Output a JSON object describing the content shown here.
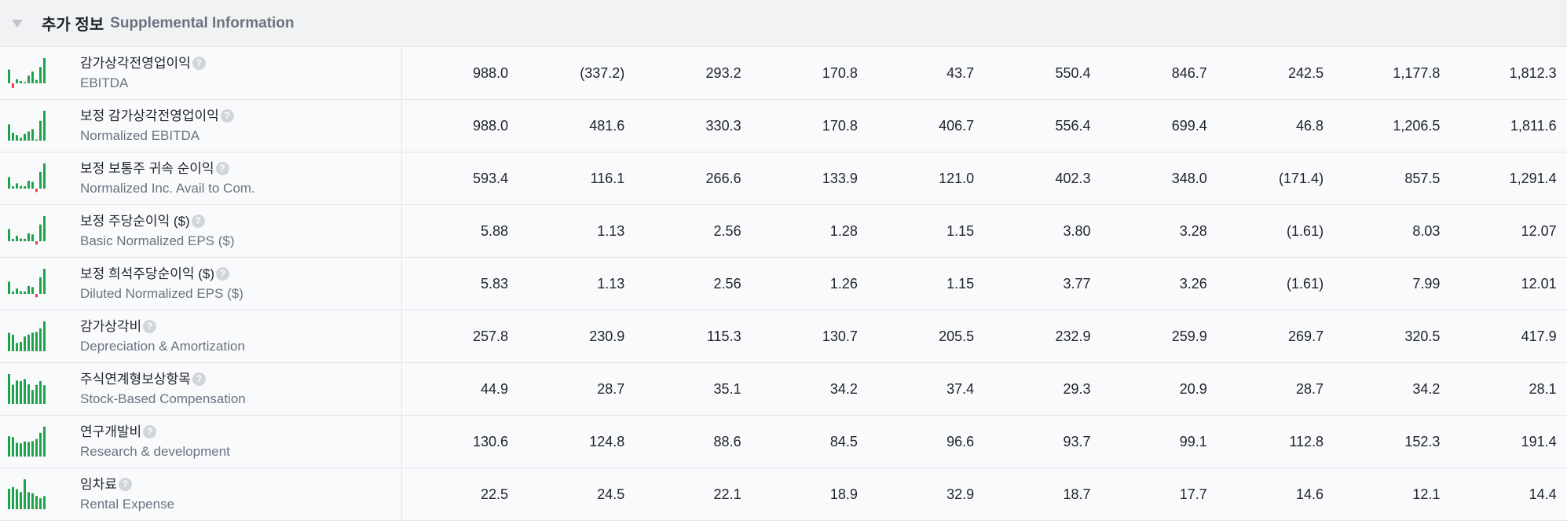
{
  "section": {
    "title_ko": "추가 정보",
    "title_en": "Supplemental Information",
    "collapse_icon": "triangle-down-icon"
  },
  "colors": {
    "positive": "#1fa34a",
    "negative": "#ef4444"
  },
  "rows": [
    {
      "ko": "감가상각전영업이익",
      "en": "EBITDA",
      "values": [
        "988.0",
        "(337.2)",
        "293.2",
        "170.8",
        "43.7",
        "550.4",
        "846.7",
        "242.5",
        "1,177.8",
        "1,812.3"
      ]
    },
    {
      "ko": "보정 감가상각전영업이익",
      "en": "Normalized EBITDA",
      "values": [
        "988.0",
        "481.6",
        "330.3",
        "170.8",
        "406.7",
        "556.4",
        "699.4",
        "46.8",
        "1,206.5",
        "1,811.6"
      ]
    },
    {
      "ko": "보정 보통주 귀속 순이익",
      "en": "Normalized Inc. Avail to Com.",
      "values": [
        "593.4",
        "116.1",
        "266.6",
        "133.9",
        "121.0",
        "402.3",
        "348.0",
        "(171.4)",
        "857.5",
        "1,291.4"
      ]
    },
    {
      "ko": "보정 주당순이익 ($)",
      "en": "Basic Normalized EPS ($)",
      "values": [
        "5.88",
        "1.13",
        "2.56",
        "1.28",
        "1.15",
        "3.80",
        "3.28",
        "(1.61)",
        "8.03",
        "12.07"
      ]
    },
    {
      "ko": "보정 희석주당순이익 ($)",
      "en": "Diluted Normalized EPS ($)",
      "values": [
        "5.83",
        "1.13",
        "2.56",
        "1.26",
        "1.15",
        "3.77",
        "3.26",
        "(1.61)",
        "7.99",
        "12.01"
      ]
    },
    {
      "ko": "감가상각비",
      "en": "Depreciation & Amortization",
      "values": [
        "257.8",
        "230.9",
        "115.3",
        "130.7",
        "205.5",
        "232.9",
        "259.9",
        "269.7",
        "320.5",
        "417.9"
      ]
    },
    {
      "ko": "주식연계형보상항목",
      "en": "Stock-Based Compensation",
      "values": [
        "44.9",
        "28.7",
        "35.1",
        "34.2",
        "37.4",
        "29.3",
        "20.9",
        "28.7",
        "34.2",
        "28.1"
      ]
    },
    {
      "ko": "연구개발비",
      "en": "Research & development",
      "values": [
        "130.6",
        "124.8",
        "88.6",
        "84.5",
        "96.6",
        "93.7",
        "99.1",
        "112.8",
        "152.3",
        "191.4"
      ]
    },
    {
      "ko": "임차료",
      "en": "Rental Expense",
      "values": [
        "22.5",
        "24.5",
        "22.1",
        "18.9",
        "32.9",
        "18.7",
        "17.7",
        "14.6",
        "12.1",
        "14.4"
      ]
    }
  ]
}
